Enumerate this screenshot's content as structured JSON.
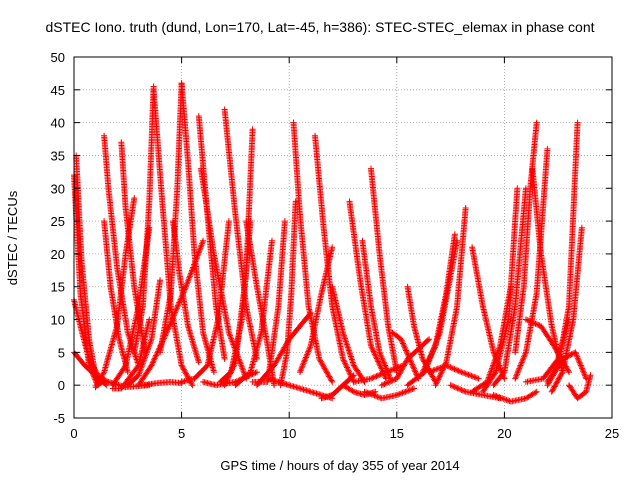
{
  "chart_data": {
    "type": "scatter",
    "title": "dSTEC Iono. truth (dund, Lon=170, Lat=-45, h=386): STEC-STEC_elemax in phase cont",
    "xlabel": "GPS time / hours of day 355 of year 2014",
    "ylabel": "dSTEC  / TECUs",
    "xlim": [
      0,
      25
    ],
    "ylim": [
      -5,
      50
    ],
    "x_ticks": [
      "0",
      "5",
      "10",
      "15",
      "20",
      "25"
    ],
    "y_ticks": [
      "-5",
      "0",
      "5",
      "10",
      "15",
      "20",
      "25",
      "30",
      "35",
      "40",
      "45",
      "50"
    ],
    "grid": true,
    "marker": "+",
    "color": "#ff0000",
    "arcs": [
      {
        "x": [
          0.0,
          0.3,
          0.7,
          1.1,
          1.3
        ],
        "y": [
          32.0,
          14.0,
          3.0,
          0.0,
          0.5
        ]
      },
      {
        "x": [
          0.1,
          0.35,
          0.7,
          1.0,
          1.2
        ],
        "y": [
          35.0,
          19.0,
          7.0,
          1.5,
          0.5
        ]
      },
      {
        "x": [
          0.0,
          0.3,
          0.7,
          1.2,
          1.5
        ],
        "y": [
          13.0,
          9.0,
          4.0,
          1.0,
          0.0
        ]
      },
      {
        "x": [
          0.0,
          0.5,
          1.0,
          1.6,
          2.4,
          3.5
        ],
        "y": [
          5.0,
          3.0,
          1.5,
          0.5,
          -0.3,
          0.0
        ]
      },
      {
        "x": [
          1.0,
          1.4,
          2.0,
          2.4,
          2.8
        ],
        "y": [
          -0.3,
          2.0,
          9.0,
          20.0,
          28.5
        ]
      },
      {
        "x": [
          1.4,
          1.6,
          2.0,
          2.5,
          3.0
        ],
        "y": [
          38.0,
          30.0,
          18.0,
          8.0,
          3.0
        ]
      },
      {
        "x": [
          1.4,
          1.7,
          2.1,
          2.5
        ],
        "y": [
          25.0,
          15.0,
          7.0,
          2.0
        ]
      },
      {
        "x": [
          2.2,
          2.4,
          2.8,
          3.3
        ],
        "y": [
          37.0,
          27.0,
          15.0,
          5.0
        ]
      },
      {
        "x": [
          1.8,
          2.4,
          3.0,
          3.5
        ],
        "y": [
          0.0,
          3.0,
          12.0,
          24.0
        ]
      },
      {
        "x": [
          1.8,
          2.2,
          3.0,
          3.5
        ],
        "y": [
          -0.5,
          -0.5,
          3.0,
          10.0
        ]
      },
      {
        "x": [
          2.5,
          3.0,
          3.6,
          4.0
        ],
        "y": [
          0.0,
          1.5,
          7.0,
          16.0
        ]
      },
      {
        "x": [
          2.8,
          3.2,
          3.5,
          3.7
        ],
        "y": [
          5.0,
          12.0,
          28.0,
          45.5
        ]
      },
      {
        "x": [
          3.7,
          4.1,
          4.5,
          5.0,
          5.5
        ],
        "y": [
          45.0,
          28.0,
          12.0,
          3.0,
          0.0
        ]
      },
      {
        "x": [
          3.0,
          3.6,
          4.3,
          5.2,
          6.0
        ],
        "y": [
          0.0,
          3.0,
          8.0,
          15.0,
          22.0
        ]
      },
      {
        "x": [
          3.2,
          3.8,
          4.5,
          5.0
        ],
        "y": [
          0.0,
          0.3,
          0.5,
          0.3
        ]
      },
      {
        "x": [
          4.0,
          4.5,
          4.8,
          5.0
        ],
        "y": [
          5.0,
          14.0,
          30.0,
          46.0
        ]
      },
      {
        "x": [
          5.0,
          5.3,
          5.6,
          6.0,
          6.5
        ],
        "y": [
          46.0,
          34.0,
          20.0,
          8.0,
          2.0
        ]
      },
      {
        "x": [
          4.6,
          4.9,
          5.3,
          5.8
        ],
        "y": [
          25.0,
          17.0,
          9.0,
          3.5
        ]
      },
      {
        "x": [
          5.0,
          5.6,
          6.2,
          6.7,
          7.2
        ],
        "y": [
          0.5,
          1.0,
          3.0,
          10.0,
          25.0
        ]
      },
      {
        "x": [
          5.8,
          6.2,
          6.6,
          7.0
        ],
        "y": [
          41.0,
          26.0,
          12.0,
          4.0
        ]
      },
      {
        "x": [
          5.9,
          6.5,
          7.2,
          8.0
        ],
        "y": [
          33.0,
          20.0,
          8.0,
          1.0
        ]
      },
      {
        "x": [
          6.0,
          6.6,
          7.5,
          8.5
        ],
        "y": [
          0.5,
          0.0,
          0.5,
          2.0
        ]
      },
      {
        "x": [
          7.0,
          7.5,
          8.0,
          8.5
        ],
        "y": [
          42.0,
          26.0,
          12.0,
          4.0
        ]
      },
      {
        "x": [
          6.8,
          7.3,
          7.8,
          8.2
        ],
        "y": [
          0.5,
          2.0,
          10.0,
          25.0
        ]
      },
      {
        "x": [
          7.0,
          7.5,
          8.0,
          8.3
        ],
        "y": [
          0.0,
          3.5,
          17.0,
          39.0
        ]
      },
      {
        "x": [
          7.5,
          8.2,
          8.7,
          9.2
        ],
        "y": [
          0.0,
          2.0,
          8.0,
          22.0
        ]
      },
      {
        "x": [
          8.0,
          8.5,
          9.0,
          9.3
        ],
        "y": [
          25.0,
          15.0,
          6.0,
          0.0
        ]
      },
      {
        "x": [
          8.3,
          9.0,
          9.5,
          9.8
        ],
        "y": [
          0.5,
          0.5,
          12.0,
          25.0
        ]
      },
      {
        "x": [
          8.5,
          9.3,
          10.0,
          11.0
        ],
        "y": [
          0.0,
          3.0,
          7.0,
          11.0
        ]
      },
      {
        "x": [
          9.0,
          9.5,
          10.0,
          11.0,
          12.0
        ],
        "y": [
          1.0,
          0.5,
          0.0,
          -1.0,
          -2.0
        ]
      },
      {
        "x": [
          9.6,
          9.9,
          10.1,
          10.3
        ],
        "y": [
          0.0,
          5.0,
          14.0,
          28.0
        ]
      },
      {
        "x": [
          10.2,
          10.5,
          10.9,
          11.4,
          12.0
        ],
        "y": [
          40.0,
          26.0,
          12.0,
          4.0,
          0.5
        ]
      },
      {
        "x": [
          10.5,
          11.0,
          11.5,
          12.0
        ],
        "y": [
          2.0,
          6.0,
          14.0,
          21.0
        ]
      },
      {
        "x": [
          11.2,
          11.6,
          12.0,
          12.5,
          13.0
        ],
        "y": [
          38.0,
          24.0,
          12.0,
          4.0,
          0.5
        ]
      },
      {
        "x": [
          11.5,
          12.0,
          12.5,
          13.0
        ],
        "y": [
          -2.0,
          -1.5,
          0.0,
          1.5
        ]
      },
      {
        "x": [
          12.0,
          12.5,
          13.0,
          13.5
        ],
        "y": [
          15.0,
          8.0,
          3.0,
          0.5
        ]
      },
      {
        "x": [
          12.5,
          13.0,
          13.5,
          14.0
        ],
        "y": [
          0.0,
          -1.0,
          -1.5,
          -1.0
        ]
      },
      {
        "x": [
          12.8,
          13.3,
          13.8,
          14.5
        ],
        "y": [
          28.0,
          16.0,
          6.0,
          1.0
        ]
      },
      {
        "x": [
          13.4,
          13.8,
          14.2,
          14.7
        ],
        "y": [
          22.0,
          12.0,
          5.0,
          1.0
        ]
      },
      {
        "x": [
          13.8,
          14.2,
          14.6,
          15.0
        ],
        "y": [
          33.0,
          20.0,
          9.0,
          2.0
        ]
      },
      {
        "x": [
          13.0,
          13.8,
          14.5,
          15.3
        ],
        "y": [
          0.5,
          1.0,
          2.0,
          3.0
        ]
      },
      {
        "x": [
          13.5,
          14.3,
          15.0,
          15.8
        ],
        "y": [
          -1.0,
          -2.0,
          -1.5,
          -0.5
        ]
      },
      {
        "x": [
          14.3,
          15.0,
          15.5,
          16.5
        ],
        "y": [
          0.0,
          1.0,
          4.0,
          7.0
        ]
      },
      {
        "x": [
          14.8,
          15.2,
          15.6,
          16.0
        ],
        "y": [
          8.0,
          7.0,
          4.0,
          1.0
        ]
      },
      {
        "x": [
          15.5,
          15.8,
          16.2,
          16.8
        ],
        "y": [
          15.0,
          9.0,
          4.0,
          0.5
        ]
      },
      {
        "x": [
          15.5,
          16.3,
          17.0,
          17.8
        ],
        "y": [
          0.0,
          2.0,
          8.0,
          22.0
        ]
      },
      {
        "x": [
          16.2,
          16.8,
          17.3,
          17.7
        ],
        "y": [
          2.0,
          6.0,
          14.0,
          23.0
        ]
      },
      {
        "x": [
          16.8,
          17.3,
          17.8,
          18.2
        ],
        "y": [
          0.0,
          3.5,
          12.0,
          27.0
        ]
      },
      {
        "x": [
          16.5,
          17.3,
          18.0,
          18.8
        ],
        "y": [
          2.0,
          3.0,
          2.0,
          1.0
        ]
      },
      {
        "x": [
          17.5,
          18.2,
          19.0,
          19.8
        ],
        "y": [
          0.0,
          -1.0,
          -1.5,
          -2.0
        ]
      },
      {
        "x": [
          18.5,
          19.0,
          19.5,
          20.0
        ],
        "y": [
          21.0,
          12.0,
          5.0,
          1.0
        ]
      },
      {
        "x": [
          18.5,
          19.2,
          19.8,
          20.3
        ],
        "y": [
          -1.0,
          0.5,
          6.0,
          15.0
        ]
      },
      {
        "x": [
          19.0,
          19.6,
          20.2,
          20.6
        ],
        "y": [
          -1.0,
          2.0,
          10.0,
          30.0
        ]
      },
      {
        "x": [
          19.5,
          20.0,
          20.5,
          21.0
        ],
        "y": [
          0.0,
          2.0,
          12.0,
          30.0
        ]
      },
      {
        "x": [
          19.5,
          20.3,
          21.0,
          21.5
        ],
        "y": [
          -1.5,
          -2.5,
          -2.0,
          -1.0
        ]
      },
      {
        "x": [
          20.5,
          20.9,
          21.2,
          21.5
        ],
        "y": [
          5.0,
          15.0,
          30.0,
          40.0
        ]
      },
      {
        "x": [
          20.5,
          21.0,
          21.5,
          22.0
        ],
        "y": [
          1.0,
          5.0,
          14.0,
          36.0
        ]
      },
      {
        "x": [
          21.3,
          21.7,
          22.2,
          22.7
        ],
        "y": [
          33.0,
          20.0,
          9.0,
          2.0
        ]
      },
      {
        "x": [
          21.0,
          21.7,
          22.3,
          23.0
        ],
        "y": [
          10.0,
          9.0,
          6.0,
          2.0
        ]
      },
      {
        "x": [
          21.0,
          21.8,
          22.5,
          23.0
        ],
        "y": [
          0.5,
          1.0,
          4.0,
          10.0
        ]
      },
      {
        "x": [
          22.0,
          22.5,
          23.0,
          23.4
        ],
        "y": [
          0.5,
          3.0,
          12.0,
          40.0
        ]
      },
      {
        "x": [
          22.2,
          22.7,
          23.2,
          23.6
        ],
        "y": [
          -1.0,
          2.0,
          10.0,
          24.0
        ]
      },
      {
        "x": [
          22.0,
          22.7,
          23.3,
          23.8
        ],
        "y": [
          0.0,
          4.0,
          5.0,
          1.0
        ]
      },
      {
        "x": [
          23.0,
          23.4,
          23.8,
          24.0
        ],
        "y": [
          0.0,
          -2.0,
          -1.0,
          1.5
        ]
      }
    ]
  }
}
